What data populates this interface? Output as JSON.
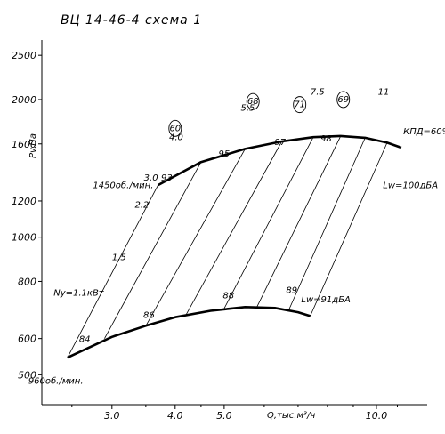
{
  "chart_data": {
    "type": "line",
    "title": "ВЦ 14-46-4 схема 1",
    "xlabel": "Q,тыс.м³/ч",
    "ylabel": "Pv,Па",
    "y_scale": "log",
    "x_scale": "log",
    "ylim": [
      430,
      2700
    ],
    "xlim": [
      2.18,
      12.6
    ],
    "y_ticks": [
      {
        "value": 2500,
        "label": "2500"
      },
      {
        "value": 2000,
        "label": "2000"
      },
      {
        "value": 1600,
        "label": "1600"
      },
      {
        "value": 1200,
        "label": "1200"
      },
      {
        "value": 1000,
        "label": "1000"
      },
      {
        "value": 800,
        "label": "800"
      },
      {
        "value": 600,
        "label": "600"
      },
      {
        "value": 500,
        "label": "500"
      }
    ],
    "x_ticks": [
      {
        "value": 3.0,
        "label": "3.0"
      },
      {
        "value": 4.0,
        "label": "4.0"
      },
      {
        "value": 5.0,
        "label": "5.0"
      },
      {
        "value": 10.0,
        "label": "10.0"
      }
    ],
    "x_minor_ticks": [
      2.5,
      3.5,
      4.5,
      6.0,
      7.0,
      8.0,
      9.0,
      11.0
    ],
    "series": [
      {
        "name": "1450об./мин.",
        "points": [
          [
            3.7,
            1300
          ],
          [
            4.5,
            1460
          ],
          [
            5.5,
            1560
          ],
          [
            6.5,
            1620
          ],
          [
            7.5,
            1655
          ],
          [
            8.5,
            1665
          ],
          [
            9.5,
            1650
          ],
          [
            10.5,
            1610
          ],
          [
            11.2,
            1570
          ]
        ]
      },
      {
        "name": "960об./мин.",
        "points": [
          [
            2.45,
            545
          ],
          [
            3.0,
            605
          ],
          [
            3.5,
            640
          ],
          [
            4.0,
            668
          ],
          [
            4.7,
            690
          ],
          [
            5.5,
            703
          ],
          [
            6.3,
            700
          ],
          [
            7.0,
            685
          ],
          [
            7.4,
            672
          ]
        ]
      }
    ],
    "efficiency_lines": [
      {
        "label": "93",
        "points": [
          [
            3.7,
            1300
          ],
          [
            2.45,
            545
          ]
        ]
      },
      {
        "label": "95",
        "points": [
          [
            4.5,
            1460
          ],
          [
            2.9,
            600
          ]
        ]
      },
      {
        "label": "97",
        "points": [
          [
            5.5,
            1560
          ],
          [
            3.5,
            640
          ]
        ]
      },
      {
        "label": "98",
        "points": [
          [
            6.5,
            1620
          ],
          [
            4.2,
            675
          ]
        ]
      },
      {
        "label": "",
        "points": [
          [
            7.5,
            1655
          ],
          [
            5.0,
            698
          ]
        ]
      },
      {
        "label": "",
        "points": [
          [
            8.5,
            1665
          ],
          [
            5.8,
            702
          ]
        ]
      },
      {
        "label": "",
        "points": [
          [
            9.5,
            1650
          ],
          [
            6.7,
            690
          ]
        ]
      },
      {
        "label": "",
        "points": [
          [
            10.5,
            1610
          ],
          [
            7.4,
            672
          ]
        ]
      }
    ],
    "point_labels": [
      {
        "text": "93",
        "x": 3.85,
        "y": 1330
      },
      {
        "text": "95",
        "x": 5.0,
        "y": 1500
      },
      {
        "text": "97",
        "x": 6.45,
        "y": 1590
      },
      {
        "text": "98",
        "x": 7.95,
        "y": 1620
      },
      {
        "text": "84",
        "x": 2.65,
        "y": 590
      },
      {
        "text": "86",
        "x": 3.55,
        "y": 665
      },
      {
        "text": "88",
        "x": 5.1,
        "y": 735
      },
      {
        "text": "89",
        "x": 6.8,
        "y": 755
      }
    ],
    "power_lines": [
      {
        "label": "1.5",
        "x": 3.2,
        "y": 890
      },
      {
        "label": "2.2",
        "x": 3.55,
        "y": 1160
      },
      {
        "label": "3.0",
        "x": 3.7,
        "y": 1330
      },
      {
        "label": "4.0",
        "x": 4.15,
        "y": 1630
      },
      {
        "label": "5.5",
        "x": 5.75,
        "y": 1890
      },
      {
        "label": "7.5",
        "x": 7.9,
        "y": 2050
      },
      {
        "label": "11",
        "x": 10.6,
        "y": 2050
      }
    ],
    "circled_labels": [
      "60",
      "68",
      "71",
      "69"
    ],
    "annotations": [
      {
        "text": "Ny=1.1кВт",
        "x": 2.3,
        "y": 745
      },
      {
        "text": "Lw=100дБА",
        "x": 10.3,
        "y": 1280
      },
      {
        "text": "Lw=91дБА",
        "x": 7.1,
        "y": 720
      },
      {
        "text": "КПД=60%",
        "x": 11.3,
        "y": 1680
      },
      {
        "text": "1450об./мин.",
        "x": 2.75,
        "y": 1280
      },
      {
        "text": "960об./мин.",
        "x": 2.05,
        "y": 478
      }
    ],
    "grid": false,
    "legend": "none"
  }
}
